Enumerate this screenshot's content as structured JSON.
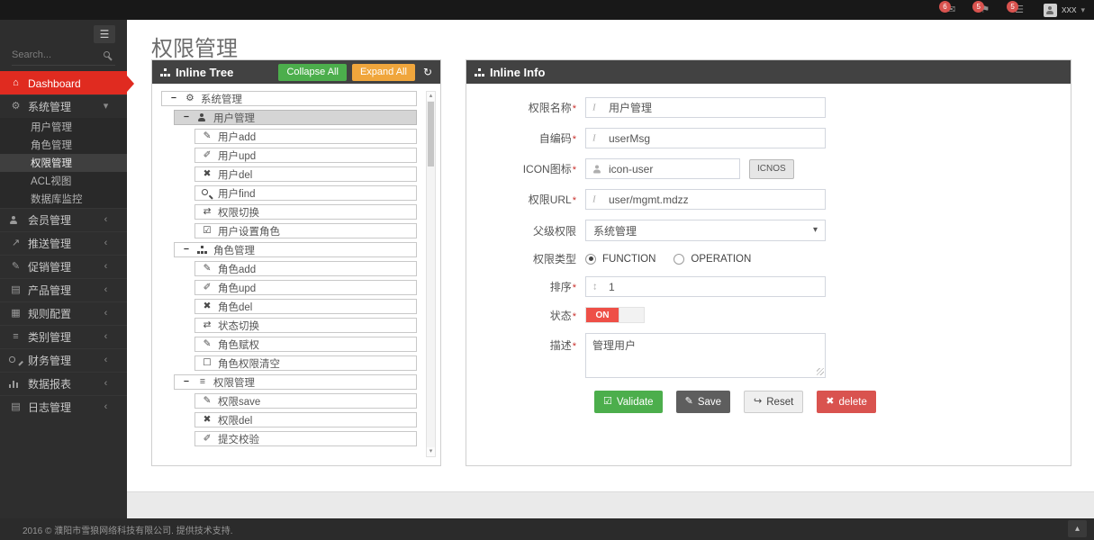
{
  "colors": {
    "accent_red": "#e02b20",
    "panel_header": "#424242",
    "green": "#4cae4c",
    "orange": "#f0a63c",
    "delete_red": "#d9534f",
    "save_gray": "#5e5e5e",
    "badge_red": "#d9534f",
    "toggle_on_red": "#ee4f47"
  },
  "navbar": {
    "notifications": [
      {
        "icon": "envelope-icon",
        "count": "6"
      },
      {
        "icon": "flag-icon",
        "count": "5"
      },
      {
        "icon": "tasks-icon",
        "count": "5"
      }
    ],
    "user_name": "xxx"
  },
  "sidebar": {
    "search_placeholder": "Search...",
    "menu": [
      {
        "name": "dashboard",
        "icon": "home-icon",
        "label": "Dashboard",
        "active": true
      },
      {
        "name": "system-management",
        "icon": "gears-icon",
        "label": "系统管理",
        "expanded": true,
        "children": [
          {
            "name": "user-management",
            "label": "用户管理"
          },
          {
            "name": "role-management",
            "label": "角色管理"
          },
          {
            "name": "permission-management",
            "label": "权限管理",
            "active": true
          },
          {
            "name": "acl-view",
            "label": "ACL视图"
          },
          {
            "name": "database-monitor",
            "label": "数据库监控"
          }
        ]
      },
      {
        "name": "member-management",
        "icon": "user-icon",
        "label": "会员管理"
      },
      {
        "name": "push-management",
        "icon": "send-icon",
        "label": "推送管理"
      },
      {
        "name": "promotion-management",
        "icon": "pencil-icon",
        "label": "促销管理"
      },
      {
        "name": "product-management",
        "icon": "book-icon",
        "label": "产品管理"
      },
      {
        "name": "rule-config",
        "icon": "news-icon",
        "label": "规则配置"
      },
      {
        "name": "category-management",
        "icon": "list-icon",
        "label": "类别管理"
      },
      {
        "name": "finance-management",
        "icon": "key-icon",
        "label": "财务管理"
      },
      {
        "name": "data-report",
        "icon": "chart-icon",
        "label": "数据报表"
      },
      {
        "name": "log-management",
        "icon": "calendar-icon",
        "label": "日志管理"
      }
    ]
  },
  "page_title": "权限管理",
  "required_mark": "*",
  "tree_panel": {
    "title": "Inline Tree",
    "collapse_all_label": "Collapse All",
    "expand_all_label": "Expand All",
    "rows": [
      {
        "level": 0,
        "toggle": true,
        "icon": "gears-icon",
        "label": "系统管理"
      },
      {
        "level": 1,
        "toggle": true,
        "icon": "user-icon",
        "label": "用户管理",
        "selected": true
      },
      {
        "level": 2,
        "icon": "pencil-icon",
        "label": "用户add"
      },
      {
        "level": 2,
        "icon": "edit-icon",
        "label": "用户upd"
      },
      {
        "level": 2,
        "icon": "delete-icon",
        "label": "用户del"
      },
      {
        "level": 2,
        "icon": "search-icon",
        "label": "用户find"
      },
      {
        "level": 2,
        "icon": "switch-icon",
        "label": "权限切换"
      },
      {
        "level": 2,
        "icon": "check-square-icon",
        "label": "用户设置角色"
      },
      {
        "level": 1,
        "toggle": true,
        "icon": "sitemap-icon",
        "label": "角色管理"
      },
      {
        "level": 2,
        "icon": "pencil-icon",
        "label": "角色add"
      },
      {
        "level": 2,
        "icon": "edit-icon",
        "label": "角色upd"
      },
      {
        "level": 2,
        "icon": "delete-icon",
        "label": "角色del"
      },
      {
        "level": 2,
        "icon": "switch-icon",
        "label": "状态切换"
      },
      {
        "level": 2,
        "icon": "pencil-icon",
        "label": "角色赋权"
      },
      {
        "level": 2,
        "icon": "square-icon",
        "label": "角色权限清空"
      },
      {
        "level": 1,
        "toggle": true,
        "icon": "list-icon",
        "label": "权限管理"
      },
      {
        "level": 2,
        "icon": "pencil-icon",
        "label": "权限save"
      },
      {
        "level": 2,
        "icon": "delete-icon",
        "label": "权限del"
      },
      {
        "level": 2,
        "icon": "edit-icon",
        "label": "提交校验"
      }
    ]
  },
  "info_panel": {
    "title": "Inline Info",
    "name_label": "权限名称",
    "name_value": "用户管理",
    "code_label": "自编码",
    "code_value": "userMsg",
    "icon_label": "ICON图标",
    "icon_value": "icon-user",
    "icnos_button_label": "ICNOS",
    "url_label": "权限URL",
    "url_value": "user/mgmt.mdzz",
    "parent_label": "父级权限",
    "parent_value": "系统管理",
    "type_label": "权限类型",
    "type_options": [
      "FUNCTION",
      "OPERATION"
    ],
    "type_selected": "FUNCTION",
    "sort_label": "排序",
    "sort_value": "1",
    "status_label": "状态",
    "status_value": "ON",
    "desc_label": "描述",
    "desc_value": "管理用户",
    "buttons": {
      "validate_label": "Validate",
      "save_label": "Save",
      "reset_label": "Reset",
      "delete_label": "delete"
    }
  },
  "footer": {
    "copyright": "2016 © 濮阳市雪狼网络科技有限公司. 提供技术支持."
  }
}
